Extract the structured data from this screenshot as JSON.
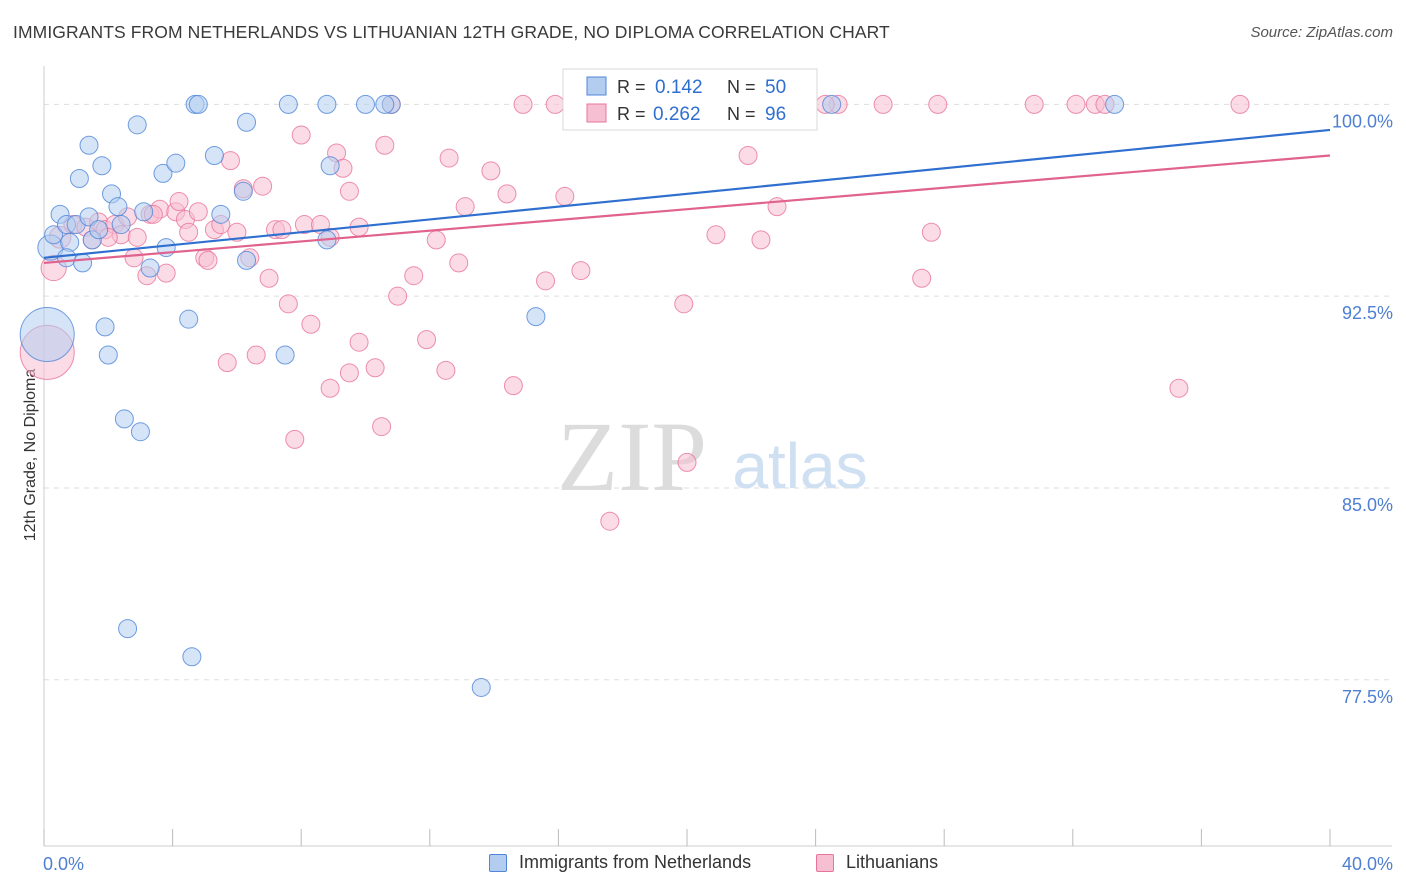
{
  "title": "IMMIGRANTS FROM NETHERLANDS VS LITHUANIAN 12TH GRADE, NO DIPLOMA CORRELATION CHART",
  "source": "Source: ZipAtlas.com",
  "watermark": {
    "zip": "ZIP",
    "atlas": "atlas"
  },
  "colors": {
    "blue": "#4f86d8",
    "blue_fill": "#b3cdf0",
    "blue_line": "#2f6fd0",
    "pink": "#e8749a",
    "pink_fill": "#f7c0d2",
    "pink_line": "#e0628d",
    "axis_label": "#4e7fd1",
    "grid": "#dddddd"
  },
  "legend_top": {
    "rows": [
      {
        "r_label": "R =",
        "r_value": "0.142",
        "n_label": "N =",
        "n_value": "50"
      },
      {
        "r_label": "R =",
        "r_value": "0.262",
        "n_label": "N =",
        "n_value": "96"
      }
    ]
  },
  "legend_bottom": [
    "Immigrants from Netherlands",
    "Lithuanians"
  ],
  "chart_data": {
    "type": "scatter",
    "title": "IMMIGRANTS FROM NETHERLANDS VS LITHUANIAN 12TH GRADE, NO DIPLOMA CORRELATION CHART",
    "xlabel": "",
    "ylabel": "12th Grade, No Diploma",
    "xlim": [
      0,
      40
    ],
    "ylim": [
      71,
      101.5
    ],
    "x_tick_labels": [
      "0.0%",
      "40.0%"
    ],
    "y_ticks": [
      77.5,
      85.0,
      92.5,
      100.0
    ],
    "y_tick_labels": [
      "77.5%",
      "85.0%",
      "92.5%",
      "100.0%"
    ],
    "series": [
      {
        "name": "Immigrants from Netherlands",
        "R": 0.142,
        "N": 50,
        "trend": [
          [
            0,
            94.0
          ],
          [
            40,
            99.0
          ]
        ],
        "points": [
          [
            0.1,
            91.0,
            3
          ],
          [
            0.2,
            94.4,
            1.4
          ],
          [
            0.3,
            94.9,
            1
          ],
          [
            0.5,
            95.7,
            1
          ],
          [
            0.7,
            95.3,
            1
          ],
          [
            0.8,
            94.6,
            1
          ],
          [
            0.7,
            94.0,
            1
          ],
          [
            1.2,
            93.8,
            1
          ],
          [
            1.0,
            95.3,
            1
          ],
          [
            1.4,
            95.6,
            1
          ],
          [
            1.4,
            98.4,
            1
          ],
          [
            1.8,
            97.6,
            1
          ],
          [
            1.1,
            97.1,
            1
          ],
          [
            2.1,
            96.5,
            1
          ],
          [
            2.3,
            96.0,
            1
          ],
          [
            2.4,
            95.3,
            1
          ],
          [
            1.5,
            94.7,
            1
          ],
          [
            1.7,
            95.1,
            1
          ],
          [
            2.9,
            99.2,
            1
          ],
          [
            3.1,
            95.8,
            1
          ],
          [
            3.7,
            97.3,
            1
          ],
          [
            4.1,
            97.7,
            1
          ],
          [
            4.7,
            100.0,
            1
          ],
          [
            4.8,
            100.0,
            1
          ],
          [
            5.3,
            98.0,
            1
          ],
          [
            5.5,
            95.7,
            1
          ],
          [
            6.3,
            99.3,
            1
          ],
          [
            6.3,
            93.9,
            1
          ],
          [
            3.3,
            93.6,
            1
          ],
          [
            3.8,
            94.4,
            1
          ],
          [
            1.9,
            91.3,
            1
          ],
          [
            2.0,
            90.2,
            1
          ],
          [
            2.5,
            87.7,
            1
          ],
          [
            3.0,
            87.2,
            1
          ],
          [
            2.6,
            79.5,
            1
          ],
          [
            4.5,
            91.6,
            1
          ],
          [
            4.6,
            78.4,
            1
          ],
          [
            7.5,
            90.2,
            1
          ],
          [
            7.6,
            100.0,
            1
          ],
          [
            8.8,
            100.0,
            1
          ],
          [
            8.9,
            97.6,
            1
          ],
          [
            8.8,
            94.7,
            1
          ],
          [
            10.0,
            100.0,
            1
          ],
          [
            10.8,
            100.0,
            1
          ],
          [
            10.6,
            100.0,
            1
          ],
          [
            13.6,
            77.2,
            1
          ],
          [
            15.3,
            91.7,
            1
          ],
          [
            24.5,
            100.0,
            1
          ],
          [
            33.3,
            100.0,
            1
          ],
          [
            6.2,
            96.6,
            1
          ]
        ]
      },
      {
        "name": "Lithuanians",
        "R": 0.262,
        "N": 96,
        "trend": [
          [
            0,
            93.8
          ],
          [
            40,
            98.0
          ]
        ],
        "points": [
          [
            0.1,
            90.3,
            3
          ],
          [
            0.3,
            93.6,
            1.4
          ],
          [
            0.5,
            94.8,
            1.2
          ],
          [
            0.9,
            95.3,
            1
          ],
          [
            1.3,
            95.2,
            1
          ],
          [
            1.5,
            94.7,
            1
          ],
          [
            1.7,
            95.4,
            1
          ],
          [
            1.9,
            95.1,
            1
          ],
          [
            2.2,
            95.3,
            1
          ],
          [
            2.4,
            94.9,
            1
          ],
          [
            2.6,
            95.6,
            1
          ],
          [
            2.8,
            94.0,
            1
          ],
          [
            2.9,
            94.8,
            1
          ],
          [
            3.2,
            93.3,
            1
          ],
          [
            3.3,
            95.7,
            1
          ],
          [
            3.6,
            95.9,
            1
          ],
          [
            3.8,
            93.4,
            1
          ],
          [
            4.1,
            95.8,
            1
          ],
          [
            4.2,
            96.2,
            1
          ],
          [
            4.4,
            95.5,
            1
          ],
          [
            4.5,
            95.0,
            1
          ],
          [
            4.8,
            95.8,
            1
          ],
          [
            5.0,
            94.0,
            1
          ],
          [
            5.1,
            93.9,
            1
          ],
          [
            5.3,
            95.1,
            1
          ],
          [
            5.5,
            95.3,
            1
          ],
          [
            5.7,
            89.9,
            1
          ],
          [
            5.8,
            97.8,
            1
          ],
          [
            6.0,
            95.0,
            1
          ],
          [
            6.2,
            96.7,
            1
          ],
          [
            6.4,
            94.0,
            1
          ],
          [
            6.6,
            90.2,
            1
          ],
          [
            6.8,
            96.8,
            1
          ],
          [
            7.0,
            93.2,
            1
          ],
          [
            7.2,
            95.1,
            1
          ],
          [
            7.4,
            95.1,
            1
          ],
          [
            7.6,
            92.2,
            1
          ],
          [
            7.8,
            86.9,
            1
          ],
          [
            8.0,
            98.8,
            1
          ],
          [
            8.1,
            95.3,
            1
          ],
          [
            8.3,
            91.4,
            1
          ],
          [
            8.6,
            95.3,
            1
          ],
          [
            8.9,
            94.8,
            1
          ],
          [
            8.9,
            88.9,
            1
          ],
          [
            9.1,
            98.1,
            1
          ],
          [
            9.3,
            97.5,
            1
          ],
          [
            9.5,
            96.6,
            1
          ],
          [
            9.5,
            89.5,
            1
          ],
          [
            9.8,
            95.2,
            1
          ],
          [
            9.8,
            90.7,
            1
          ],
          [
            10.3,
            89.7,
            1
          ],
          [
            10.5,
            87.4,
            1
          ],
          [
            10.6,
            98.4,
            1
          ],
          [
            10.8,
            100.0,
            1
          ],
          [
            11.0,
            92.5,
            1
          ],
          [
            11.5,
            93.3,
            1
          ],
          [
            11.9,
            90.8,
            1
          ],
          [
            12.2,
            94.7,
            1
          ],
          [
            12.5,
            89.6,
            1
          ],
          [
            12.6,
            97.9,
            1
          ],
          [
            12.9,
            93.8,
            1
          ],
          [
            13.1,
            96.0,
            1
          ],
          [
            13.9,
            97.4,
            1
          ],
          [
            14.4,
            96.5,
            1
          ],
          [
            14.6,
            89.0,
            1
          ],
          [
            14.9,
            100.0,
            1
          ],
          [
            15.6,
            93.1,
            1
          ],
          [
            15.9,
            100.0,
            1
          ],
          [
            16.2,
            96.4,
            1
          ],
          [
            16.7,
            93.5,
            1
          ],
          [
            17.3,
            100.0,
            1
          ],
          [
            17.6,
            83.7,
            1
          ],
          [
            19.0,
            100.0,
            1
          ],
          [
            19.9,
            92.2,
            1
          ],
          [
            20.0,
            86.0,
            1
          ],
          [
            20.9,
            94.9,
            1
          ],
          [
            21.2,
            100.0,
            1
          ],
          [
            21.9,
            98.0,
            1
          ],
          [
            22.3,
            94.7,
            1
          ],
          [
            22.8,
            96.0,
            1
          ],
          [
            23.2,
            100.0,
            1
          ],
          [
            24.7,
            100.0,
            1
          ],
          [
            26.1,
            100.0,
            1
          ],
          [
            27.3,
            93.2,
            1
          ],
          [
            27.6,
            95.0,
            1
          ],
          [
            27.8,
            100.0,
            1
          ],
          [
            30.8,
            100.0,
            1
          ],
          [
            32.1,
            100.0,
            1
          ],
          [
            32.7,
            100.0,
            1
          ],
          [
            33.0,
            100.0,
            1
          ],
          [
            37.2,
            100.0,
            1
          ],
          [
            35.3,
            88.9,
            1
          ],
          [
            24.3,
            100.0,
            1
          ],
          [
            18.0,
            100.0,
            1
          ],
          [
            3.4,
            95.7,
            1
          ],
          [
            2.0,
            94.8,
            1
          ]
        ]
      }
    ]
  }
}
